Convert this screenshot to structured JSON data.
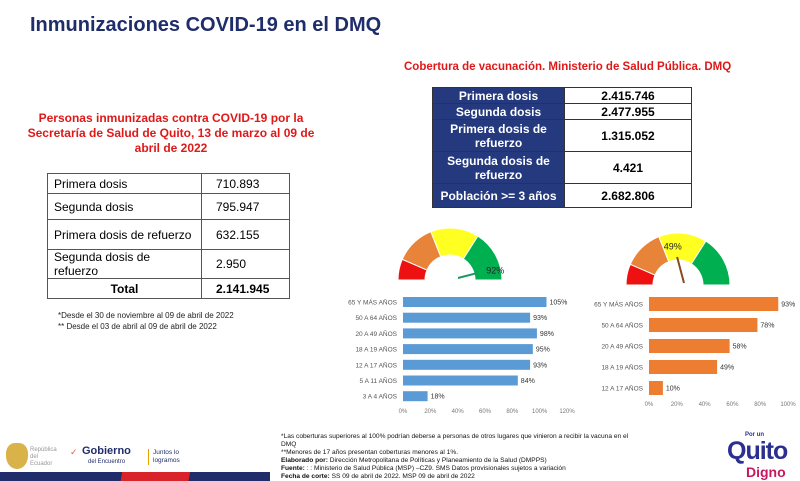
{
  "title": "Inmunizaciones COVID-19 en el DMQ",
  "left": {
    "heading": "Personas inmunizadas contra COVID-19 por la Secretaría de Salud de Quito, 13 de marzo al 09 de abril de 2022",
    "rows": [
      {
        "label": "Primera dosis",
        "value": "710.893"
      },
      {
        "label": "Segunda dosis",
        "value": "795.947"
      },
      {
        "label": "Primera dosis de refuerzo",
        "value": "632.155"
      },
      {
        "label": "Segunda dosis de refuerzo",
        "value": "2.950"
      }
    ],
    "total": {
      "label": "Total",
      "value": "2.141.945"
    },
    "notes": [
      "*Desde el  30 de noviembre al 09 de abril de 2022",
      "** Desde el  03 de abril al 09 de abril de 2022"
    ]
  },
  "right": {
    "heading": "Cobertura de vacunación. Ministerio de Salud Pública. DMQ",
    "rows": [
      {
        "label": "Primera dosis",
        "value": "2.415.746"
      },
      {
        "label": "Segunda dosis",
        "value": "2.477.955"
      },
      {
        "label": "Primera dosis de refuerzo",
        "value": "1.315.052"
      },
      {
        "label": "Segunda dosis de refuerzo",
        "value": "4.421"
      },
      {
        "label": "Población >= 3 años",
        "value": "2.682.806"
      }
    ]
  },
  "gauges": [
    {
      "value": 92,
      "label": "92%",
      "needle": "#1a9a5a"
    },
    {
      "value": 49,
      "label": "49%",
      "needle": "#8a4a20"
    }
  ],
  "chart_data": [
    {
      "type": "bar",
      "orientation": "horizontal",
      "categories": [
        "65 Y MÁS AÑOS",
        "50 A 64 AÑOS",
        "20 A 49 AÑOS",
        "18 A 19 AÑOS",
        "12 A 17 AÑOS",
        "5 A 11 AÑOS",
        "3 A 4 AÑOS"
      ],
      "values": [
        105,
        93,
        98,
        95,
        93,
        84,
        18
      ],
      "labels": [
        "105%",
        "93%",
        "98%",
        "95%",
        "93%",
        "84%",
        "18%"
      ],
      "xlim": [
        0,
        120
      ],
      "ticks": [
        "0%",
        "20%",
        "40%",
        "60%",
        "80%",
        "100%",
        "120%"
      ],
      "color": "#5b9bd5"
    },
    {
      "type": "bar",
      "orientation": "horizontal",
      "categories": [
        "65 Y MÁS AÑOS",
        "50 A 64 AÑOS",
        "20 A 49 AÑOS",
        "18 A 19 AÑOS",
        "12 A 17 AÑOS"
      ],
      "values": [
        93,
        78,
        58,
        49,
        10
      ],
      "labels": [
        "93%",
        "78%",
        "58%",
        "49%",
        "10%"
      ],
      "xlim": [
        0,
        100
      ],
      "ticks": [
        "0%",
        "20%",
        "40%",
        "60%",
        "80%",
        "100%"
      ],
      "color": "#ed7d31"
    }
  ],
  "footnote": {
    "lines": [
      "*Las coberturas superiores al 100% podrían deberse a personas de otros lugares que vinieron a recibir la vacuna en el DMQ",
      "**Menores de 17 años presentan coberturas menores al 1%."
    ],
    "elaborado_label": "Elaborado por:",
    "elaborado": " Dirección Metropolitana de Políticas y Planeamiento de la Salud (DMPPS)",
    "fuente_label": "Fuente:",
    "fuente": " : : Ministerio de Salud Pública (MSP) –CZ9.  SMS Datos provisionales sujetos a variación",
    "fecha_label": "Fecha de corte:",
    "fecha": " SS 09 de abril de 2022. MSP 09 de abril de 2022"
  },
  "logos": {
    "republica": "República del Ecuador",
    "gobierno": "Gobierno",
    "encuentro": "del Encuentro",
    "juntos": "Juntos lo logramos",
    "porun": "Por un",
    "quito": "Quito",
    "digno": "Digno"
  }
}
